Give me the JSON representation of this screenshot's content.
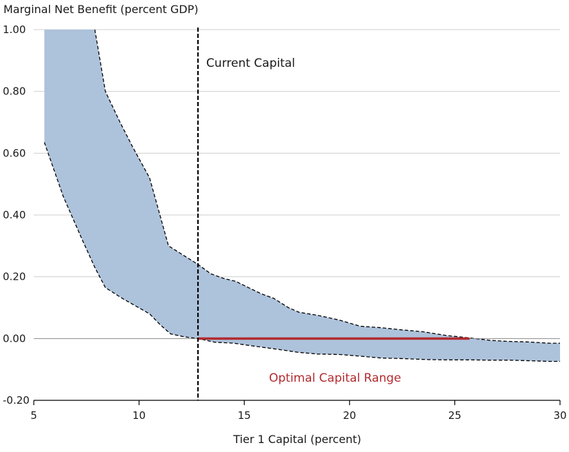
{
  "chart_data": {
    "type": "area",
    "title": "",
    "ylabel": "Marginal Net Benefit (percent GDP)",
    "xlabel": "Tier 1 Capital (percent)",
    "xlim": [
      5,
      30
    ],
    "ylim": [
      -0.2,
      1.0
    ],
    "x_ticks": [
      5,
      10,
      15,
      20,
      25,
      30
    ],
    "x_tick_labels": [
      "5",
      "10",
      "15",
      "20",
      "25",
      "30"
    ],
    "y_ticks": [
      -0.2,
      0.0,
      0.2,
      0.4,
      0.6,
      0.8,
      1.0
    ],
    "y_tick_labels": [
      "-0.20",
      "0.00",
      "0.20",
      "0.40",
      "0.60",
      "0.80",
      "1.00"
    ],
    "grid": "horizontal",
    "band_color": "#adc2db",
    "series": [
      {
        "role": "upper",
        "x": [
          5.5,
          7.9,
          8.4,
          9.1,
          9.7,
          10.5,
          11.4,
          12.1,
          12.8,
          13.4,
          14.0,
          14.6,
          15.2,
          15.8,
          16.4,
          17.1,
          17.6,
          18.5,
          19.5,
          20.5,
          21.5,
          22.5,
          23.5,
          24.6,
          25.7,
          26.7,
          27.5,
          28.5,
          29.5,
          30.0
        ],
        "y": [
          1.0,
          1.0,
          0.8,
          0.7,
          0.62,
          0.52,
          0.3,
          0.27,
          0.24,
          0.21,
          0.195,
          0.185,
          0.165,
          0.145,
          0.13,
          0.1,
          0.085,
          0.075,
          0.06,
          0.04,
          0.035,
          0.028,
          0.022,
          0.01,
          0.002,
          -0.006,
          -0.009,
          -0.011,
          -0.015,
          -0.015
        ]
      },
      {
        "role": "lower",
        "x": [
          5.5,
          6.4,
          7.3,
          7.9,
          8.4,
          9.2,
          10.5,
          11.0,
          11.5,
          12.2,
          12.8,
          13.6,
          14.5,
          15.5,
          16.6,
          17.6,
          18.5,
          19.6,
          20.5,
          21.5,
          22.6,
          23.6,
          24.6,
          25.7,
          26.6,
          27.6,
          28.6,
          29.5,
          30.0
        ],
        "y": [
          0.635,
          0.46,
          0.32,
          0.23,
          0.165,
          0.13,
          0.08,
          0.045,
          0.015,
          0.005,
          0.0,
          -0.012,
          -0.015,
          -0.025,
          -0.035,
          -0.045,
          -0.05,
          -0.052,
          -0.057,
          -0.063,
          -0.065,
          -0.068,
          -0.069,
          -0.069,
          -0.07,
          -0.07,
          -0.072,
          -0.074,
          -0.074
        ]
      }
    ],
    "vertical_line": {
      "x": 12.8,
      "label": "Current Capital",
      "color": "#000000"
    },
    "range_line": {
      "x_start": 12.8,
      "x_end": 25.7,
      "y": 0.0,
      "label": "Optimal Capital Range",
      "color": "#b22b2f"
    }
  }
}
